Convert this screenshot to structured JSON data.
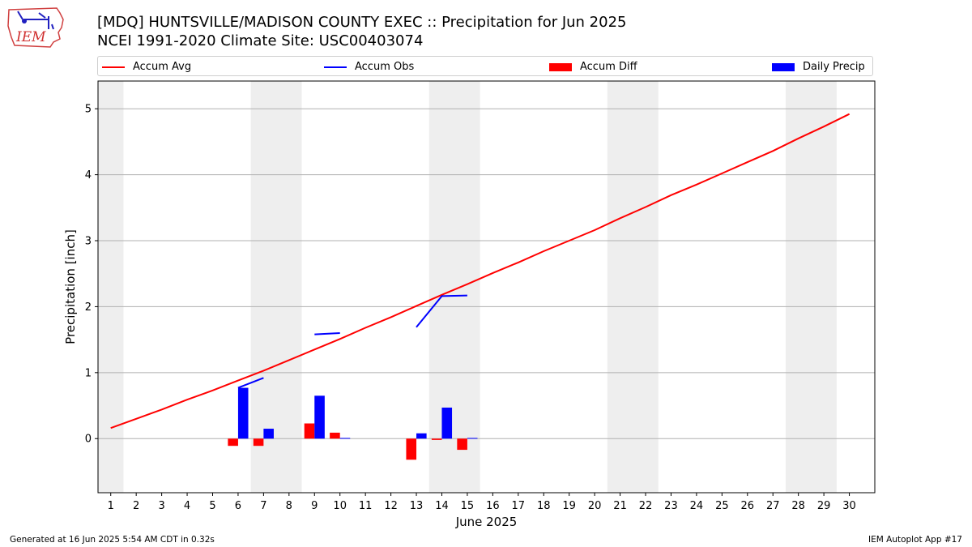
{
  "header": {
    "title": "[MDQ] HUNTSVILLE/MADISON COUNTY EXEC :: Precipitation for Jun 2025",
    "subtitle": "NCEI 1991-2020 Climate Site: USC00403074",
    "logo_text": "IEM"
  },
  "legend": {
    "items": [
      {
        "label": "Accum Avg",
        "kind": "line",
        "color": "#ff0000"
      },
      {
        "label": "Accum Obs",
        "kind": "line",
        "color": "#0000ff"
      },
      {
        "label": "Accum Diff",
        "kind": "box",
        "color": "#ff0000"
      },
      {
        "label": "Daily Precip",
        "kind": "box",
        "color": "#0000ff"
      }
    ]
  },
  "footer": {
    "left": "Generated at 16 Jun 2025 5:54 AM CDT in 0.32s",
    "right": "IEM Autoplot App #17"
  },
  "chart_data": {
    "type": "bar",
    "xlabel": "June 2025",
    "ylabel": "Precipitation [inch]",
    "xlim": [
      0.5,
      31
    ],
    "ylim": [
      -0.82,
      5.42
    ],
    "x_ticks": [
      1,
      2,
      3,
      4,
      5,
      6,
      7,
      8,
      9,
      10,
      11,
      12,
      13,
      14,
      15,
      16,
      17,
      18,
      19,
      20,
      21,
      22,
      23,
      24,
      25,
      26,
      27,
      28,
      29,
      30
    ],
    "y_ticks": [
      0,
      1,
      2,
      3,
      4,
      5
    ],
    "grid": "horizontal",
    "weekend_bands": [
      [
        0.5,
        1.5
      ],
      [
        6.5,
        8.5
      ],
      [
        13.5,
        15.5
      ],
      [
        20.5,
        22.5
      ],
      [
        27.5,
        29.5
      ]
    ],
    "colors": {
      "avg": "#ff0000",
      "obs": "#0000ff",
      "diff": "#ff0000",
      "daily": "#0000ff",
      "band": "#eeeeee",
      "grid": "#b0b0b0"
    },
    "series": [
      {
        "name": "Accum Avg",
        "kind": "line",
        "x": [
          1,
          2,
          3,
          4,
          5,
          6,
          7,
          8,
          9,
          10,
          11,
          12,
          13,
          14,
          15,
          16,
          17,
          18,
          19,
          20,
          21,
          22,
          23,
          24,
          25,
          26,
          27,
          28,
          29,
          30
        ],
        "values": [
          0.16,
          0.3,
          0.44,
          0.59,
          0.73,
          0.88,
          1.03,
          1.19,
          1.35,
          1.51,
          1.68,
          1.84,
          2.01,
          2.18,
          2.34,
          2.51,
          2.67,
          2.84,
          3.0,
          3.16,
          3.34,
          3.51,
          3.69,
          3.85,
          4.02,
          4.19,
          4.36,
          4.55,
          4.73,
          4.92
        ]
      },
      {
        "name": "Accum Obs",
        "kind": "line",
        "segments": [
          {
            "x": [
              6,
              7
            ],
            "values": [
              0.77,
              0.92
            ]
          },
          {
            "x": [
              9,
              10
            ],
            "values": [
              1.58,
              1.6
            ]
          },
          {
            "x": [
              13,
              14,
              15
            ],
            "values": [
              1.69,
              2.16,
              2.17
            ]
          }
        ]
      },
      {
        "name": "Accum Diff",
        "kind": "bar",
        "x": [
          6,
          7,
          9,
          10,
          13,
          14,
          15
        ],
        "values": [
          -0.11,
          -0.11,
          0.23,
          0.09,
          -0.32,
          -0.02,
          -0.17
        ]
      },
      {
        "name": "Daily Precip",
        "kind": "bar",
        "x": [
          6,
          7,
          9,
          10,
          13,
          14,
          15
        ],
        "values": [
          0.77,
          0.15,
          0.65,
          0.01,
          0.08,
          0.47,
          0.01
        ]
      }
    ]
  }
}
